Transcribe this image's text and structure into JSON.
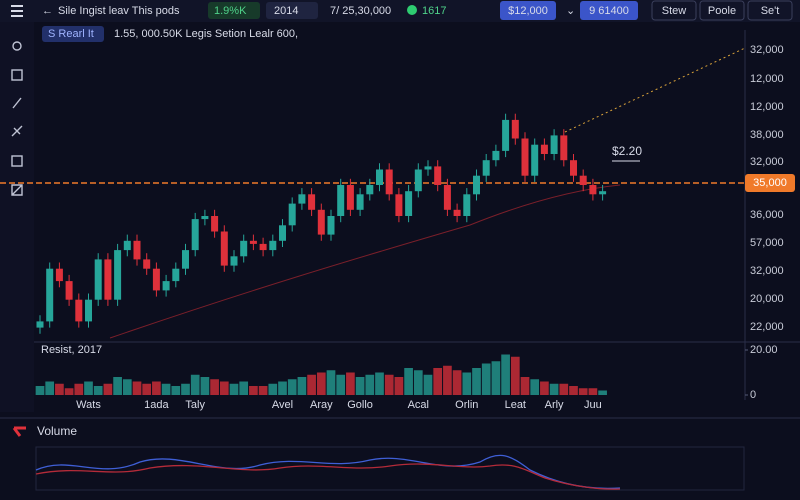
{
  "top_bar": {
    "title": "Sile Ingist leav This pods",
    "badge1": "1.9%K",
    "badge2": "2014",
    "stat": "7/ 25,30,000",
    "badge3": "1617",
    "button1": "$12,000",
    "button2": "9 61400",
    "tabs": [
      "Stew",
      "Poole",
      "Se't"
    ]
  },
  "info_bar": {
    "symbol": "S Rearl It",
    "text": "1.55, 000.50K Legis Setion Lealr 600,"
  },
  "price_axis_labels": [
    "32,000",
    "12,000",
    "12,000",
    "38,000",
    "32,000",
    "36,000",
    "57,000",
    "32,000",
    "20,000",
    "22,000"
  ],
  "price_tag": "35,000",
  "annotation": "$2.20",
  "volume_panel_label": "Resist, 2017",
  "oscillator_label": "Volume",
  "chart_data": {
    "type": "candlestick",
    "categories": [
      null,
      null,
      null,
      null,
      null,
      "Wats",
      null,
      null,
      null,
      null,
      null,
      null,
      "1ada",
      null,
      null,
      null,
      "Taly",
      null,
      null,
      null,
      null,
      null,
      null,
      null,
      null,
      "Avel",
      null,
      null,
      null,
      "Aray",
      null,
      null,
      null,
      "Gollo",
      null,
      null,
      null,
      null,
      null,
      "Acal",
      null,
      null,
      null,
      null,
      "Orlin",
      null,
      null,
      null,
      null,
      "Leat",
      null,
      null,
      null,
      "Arly",
      null,
      null,
      null,
      "Juu",
      null
    ],
    "open": [
      4,
      6,
      23,
      19,
      13,
      6,
      13,
      26,
      13,
      29,
      32,
      26,
      23,
      16,
      19,
      23,
      29,
      39,
      40,
      35,
      24,
      27,
      32,
      31,
      29,
      32,
      37,
      44,
      47,
      42,
      34,
      40,
      50,
      42,
      47,
      50,
      55,
      47,
      40,
      48,
      55,
      56,
      50,
      42,
      40,
      47,
      53,
      58,
      61,
      71,
      65,
      53,
      63,
      60,
      66,
      58,
      53,
      50,
      47
    ],
    "high": [
      8,
      25,
      25,
      21,
      15,
      15,
      28,
      28,
      31,
      34,
      34,
      28,
      25,
      21,
      25,
      31,
      41,
      42,
      42,
      37,
      29,
      34,
      34,
      33,
      34,
      39,
      46,
      49,
      49,
      44,
      42,
      52,
      52,
      49,
      52,
      57,
      57,
      49,
      50,
      57,
      58,
      58,
      52,
      44,
      49,
      55,
      60,
      63,
      73,
      73,
      67,
      65,
      65,
      68,
      68,
      60,
      55,
      52,
      50
    ],
    "low": [
      2,
      4,
      17,
      11,
      4,
      4,
      11,
      11,
      11,
      27,
      24,
      21,
      14,
      14,
      17,
      21,
      27,
      37,
      33,
      22,
      22,
      25,
      29,
      27,
      27,
      30,
      35,
      42,
      40,
      32,
      32,
      38,
      40,
      40,
      45,
      48,
      45,
      38,
      38,
      46,
      53,
      48,
      40,
      38,
      38,
      45,
      51,
      56,
      59,
      63,
      51,
      51,
      58,
      58,
      56,
      51,
      48,
      45,
      45
    ],
    "close": [
      6,
      23,
      19,
      13,
      6,
      13,
      26,
      13,
      29,
      32,
      26,
      23,
      16,
      19,
      23,
      29,
      39,
      40,
      35,
      24,
      27,
      32,
      31,
      29,
      32,
      37,
      44,
      47,
      42,
      34,
      40,
      50,
      42,
      47,
      50,
      55,
      47,
      40,
      48,
      55,
      56,
      50,
      42,
      40,
      47,
      53,
      58,
      61,
      71,
      65,
      53,
      63,
      60,
      66,
      58,
      53,
      50,
      47,
      48
    ],
    "up_color": "#26a69a",
    "down_color": "#e0313b",
    "ylim": [
      0,
      100
    ],
    "volume": [
      4,
      6,
      5,
      3,
      5,
      6,
      4,
      5,
      8,
      7,
      6,
      5,
      6,
      5,
      4,
      5,
      9,
      8,
      7,
      6,
      5,
      6,
      4,
      4,
      5,
      6,
      7,
      8,
      9,
      10,
      11,
      9,
      10,
      8,
      9,
      10,
      9,
      8,
      12,
      11,
      9,
      12,
      13,
      11,
      10,
      12,
      14,
      15,
      18,
      17,
      8,
      7,
      6,
      5,
      5,
      4,
      3,
      3,
      2
    ],
    "volume_ylim": [
      0,
      20
    ],
    "volume_yticks": [
      {
        "value": 20,
        "label": "20.00"
      },
      0
    ]
  }
}
